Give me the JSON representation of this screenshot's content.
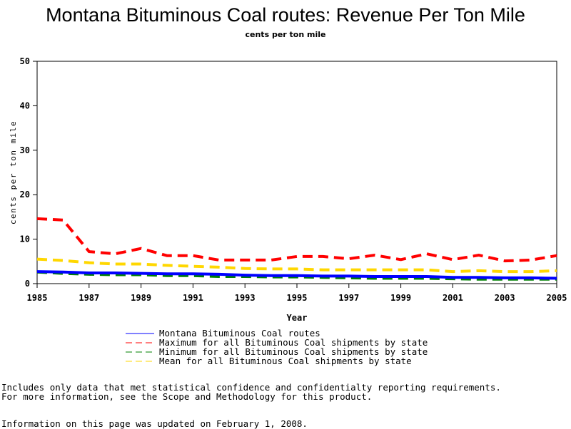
{
  "chart_data": {
    "type": "line",
    "title": "Montana Bituminous Coal routes: Revenue Per Ton Mile",
    "subtitle": "cents per ton mile",
    "xlabel": "Year",
    "ylabel": "cents per ton mile",
    "xlim": [
      1985,
      2005
    ],
    "ylim": [
      0,
      50
    ],
    "xticks": [
      "1985",
      "1987",
      "1989",
      "1991",
      "1993",
      "1995",
      "1997",
      "1999",
      "2001",
      "2003",
      "2005"
    ],
    "yticks": [
      "0",
      "10",
      "20",
      "30",
      "40",
      "50"
    ],
    "grid": false,
    "legend_position": "bottom",
    "x": [
      1985,
      1986,
      1987,
      1988,
      1989,
      1990,
      1991,
      1992,
      1993,
      1994,
      1995,
      1996,
      1997,
      1998,
      1999,
      2000,
      2001,
      2002,
      2003,
      2004,
      2005
    ],
    "series": [
      {
        "name": "Montana Bituminous Coal routes",
        "color": "#0000ff",
        "dashed": false,
        "values": [
          2.7,
          2.6,
          2.4,
          2.4,
          2.3,
          2.2,
          2.2,
          2.1,
          1.9,
          1.8,
          1.8,
          1.7,
          1.7,
          1.6,
          1.6,
          1.6,
          1.4,
          1.4,
          1.3,
          1.3,
          1.2
        ]
      },
      {
        "name": "Maximum for all Bituminous Coal shipments by state",
        "color": "#ff0000",
        "dashed": true,
        "values": [
          14.6,
          14.3,
          7.2,
          6.7,
          7.9,
          6.3,
          6.3,
          5.3,
          5.3,
          5.3,
          6.1,
          6.1,
          5.6,
          6.4,
          5.4,
          6.7,
          5.4,
          6.4,
          5.1,
          5.3,
          6.3
        ]
      },
      {
        "name": "Minimum for all Bituminous Coal shipments by state",
        "color": "#008000",
        "dashed": true,
        "values": [
          2.6,
          2.3,
          2.1,
          2.0,
          2.0,
          1.8,
          1.8,
          1.6,
          1.6,
          1.5,
          1.5,
          1.4,
          1.3,
          1.2,
          1.2,
          1.2,
          1.1,
          1.0,
          1.0,
          1.0,
          1.0
        ]
      },
      {
        "name": "Mean for all Bituminous Coal shipments by state",
        "color": "#ffd700",
        "dashed": true,
        "values": [
          5.5,
          5.2,
          4.7,
          4.4,
          4.4,
          4.1,
          3.9,
          3.7,
          3.4,
          3.3,
          3.3,
          3.1,
          3.1,
          3.1,
          3.1,
          3.1,
          2.7,
          2.9,
          2.7,
          2.7,
          2.9
        ]
      }
    ]
  },
  "notes": {
    "line1": "Includes only data that met statistical confidence and confidentialty reporting requirements.",
    "line2": "For more information, see the Scope and Methodology for this product.",
    "updated": "Information on this page was updated on February 1, 2008."
  }
}
